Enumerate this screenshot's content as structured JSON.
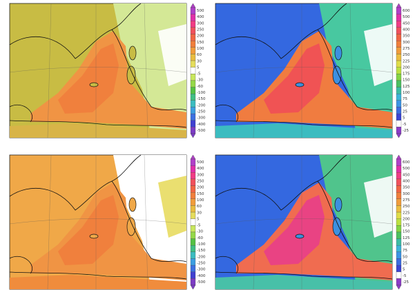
{
  "panels": [
    {
      "colorbar": {
        "labels": [
          500,
          400,
          300,
          250,
          200,
          150,
          100,
          60,
          30,
          5,
          -5,
          -30,
          -60,
          -100,
          -150,
          -200,
          -250,
          -300,
          -400,
          -500
        ]
      }
    },
    {
      "colorbar": {
        "labels": [
          600,
          500,
          450,
          400,
          350,
          300,
          275,
          250,
          225,
          200,
          175,
          150,
          125,
          100,
          75,
          50,
          25,
          5,
          -5,
          -25
        ]
      }
    },
    {
      "colorbar": {
        "labels": [
          500,
          400,
          300,
          250,
          200,
          150,
          100,
          60,
          30,
          5,
          -5,
          -30,
          -60,
          -100,
          -150,
          -200,
          -250,
          -300,
          -400,
          -500
        ]
      }
    },
    {
      "colorbar": {
        "labels": [
          600,
          500,
          450,
          400,
          350,
          300,
          275,
          250,
          225,
          200,
          175,
          150,
          125,
          100,
          75,
          50,
          25,
          5,
          -5,
          -25
        ]
      }
    }
  ]
}
